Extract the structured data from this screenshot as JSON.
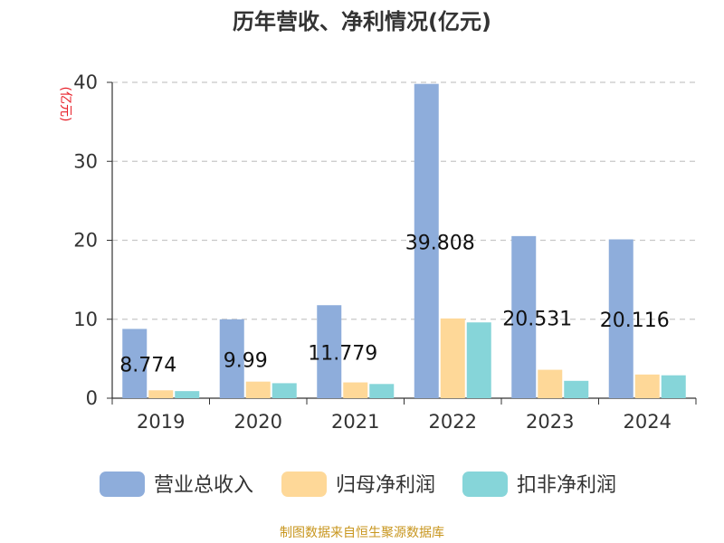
{
  "chart_data": {
    "type": "bar",
    "title": "历年营收、净利情况(亿元)",
    "ylabel": "(亿元)",
    "xlabel": "",
    "categories": [
      "2019",
      "2020",
      "2021",
      "2022",
      "2023",
      "2024"
    ],
    "ylim": [
      0,
      40
    ],
    "yticks": [
      0,
      10,
      20,
      30,
      40
    ],
    "grid": true,
    "legend_position": "bottom",
    "series": [
      {
        "name": "营业总收入",
        "color": "#8eaddb",
        "values": [
          8.774,
          9.99,
          11.779,
          39.808,
          20.531,
          20.116
        ],
        "labels": [
          "8.774",
          "9.99",
          "11.779",
          "39.808",
          "20.531",
          "20.116"
        ]
      },
      {
        "name": "归母净利润",
        "color": "#fed898",
        "values": [
          1.0,
          2.1,
          2.0,
          10.1,
          3.6,
          3.0
        ]
      },
      {
        "name": "扣非净利润",
        "color": "#86d5d9",
        "values": [
          0.9,
          1.9,
          1.8,
          9.6,
          2.2,
          2.9
        ]
      }
    ]
  },
  "source_note": "制图数据来自恒生聚源数据库",
  "colors": {
    "axis": "#333333",
    "grid": "#c8c8c8",
    "ylabel": "#e8202a",
    "source": "#c8961e"
  }
}
